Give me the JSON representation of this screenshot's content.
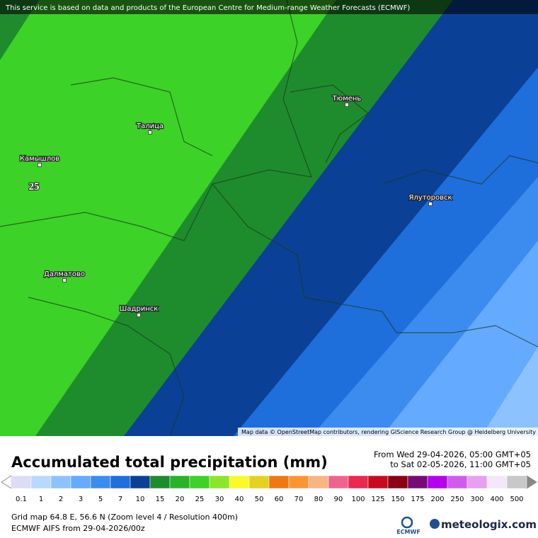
{
  "header": {
    "notice": "This service is based on data and products of the European Centre for Medium-range Weather Forecasts (ECMWF)"
  },
  "map": {
    "cities": [
      "Тюмень",
      "Талица",
      "Камышлов",
      "Ялуторовск",
      "Далматово",
      "Шадринск"
    ],
    "value_label": "25",
    "attribution": "Map data © OpenStreetMap contributors, rendering GIScience Research Group @ Heidelberg University"
  },
  "legend": {
    "title": "Accumulated total precipitation (mm)",
    "period_from": "From Wed 29-04-2026, 05:00 GMT+05",
    "period_to": "to Sat 02-05-2026, 11:00 GMT+05",
    "classes": [
      {
        "label": "0.1",
        "color": "#dcdcf5"
      },
      {
        "label": "1",
        "color": "#b9d7ff"
      },
      {
        "label": "2",
        "color": "#8cc3ff"
      },
      {
        "label": "3",
        "color": "#64aaff"
      },
      {
        "label": "5",
        "color": "#3c8cf0"
      },
      {
        "label": "7",
        "color": "#1e6edc"
      },
      {
        "label": "10",
        "color": "#0a4196"
      },
      {
        "label": "15",
        "color": "#1e8c2d"
      },
      {
        "label": "20",
        "color": "#28b428"
      },
      {
        "label": "25",
        "color": "#3cd228"
      },
      {
        "label": "30",
        "color": "#8ce628"
      },
      {
        "label": "40",
        "color": "#fafa28"
      },
      {
        "label": "50",
        "color": "#e6d21e"
      },
      {
        "label": "60",
        "color": "#f07814"
      },
      {
        "label": "70",
        "color": "#fa9632"
      },
      {
        "label": "80",
        "color": "#fab482"
      },
      {
        "label": "90",
        "color": "#f0648c"
      },
      {
        "label": "100",
        "color": "#eb2850"
      },
      {
        "label": "125",
        "color": "#c80a1e"
      },
      {
        "label": "150",
        "color": "#8c0014"
      },
      {
        "label": "175",
        "color": "#780a78"
      },
      {
        "label": "200",
        "color": "#b400f0"
      },
      {
        "label": "250",
        "color": "#d25af0"
      },
      {
        "label": "300",
        "color": "#e6a0f0"
      },
      {
        "label": "400",
        "color": "#f5e6fa"
      },
      {
        "label": "500",
        "color": "#c8c8c8"
      }
    ]
  },
  "footer": {
    "grid_info": "Grid map 64.8 E, 56.6 N (Zoom level 4 / Resolution 400m)",
    "model_run": "ECMWF AIFS from 29-04-2026/00z",
    "ecmwf_logo": "ECMWF",
    "brand": "meteologix.com"
  }
}
